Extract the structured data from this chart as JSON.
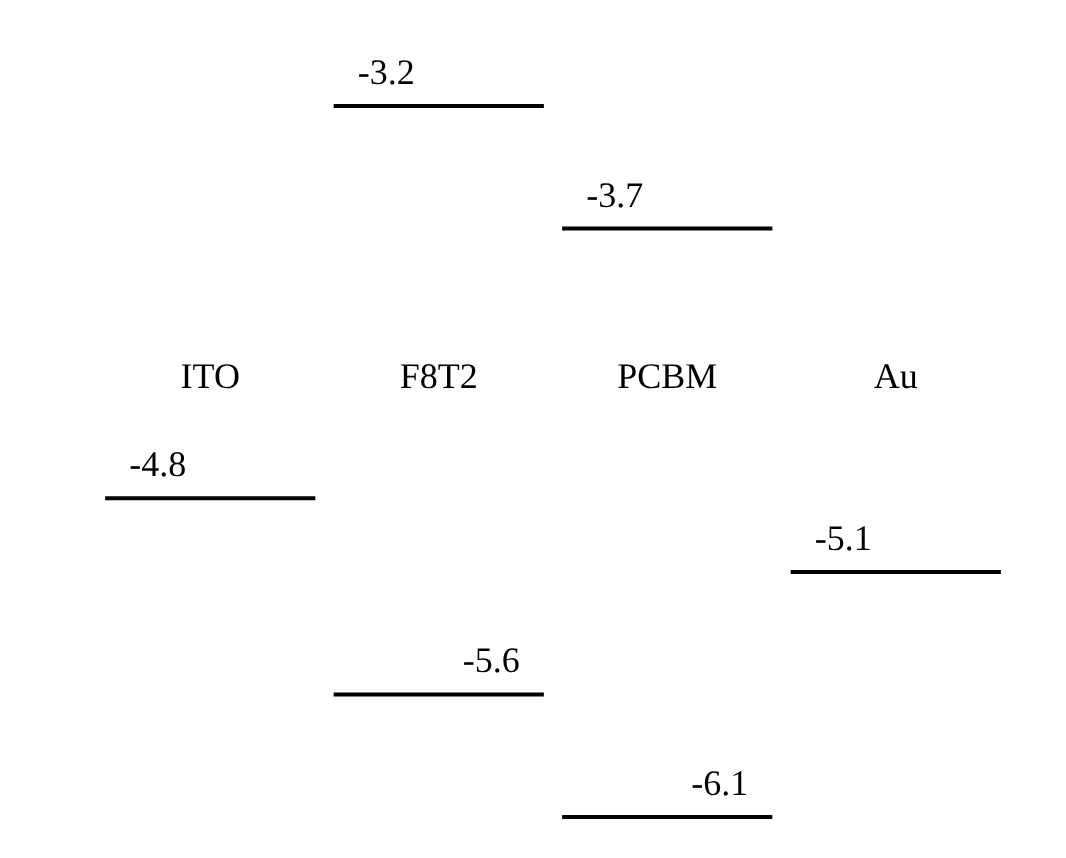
{
  "chart_data": {
    "type": "other",
    "categories": [
      "ITO",
      "F8T2",
      "PCBM",
      "Au"
    ],
    "series": [
      {
        "color": "#000000",
        "values": [
          -4.8,
          -3.2,
          -3.7,
          -5.1
        ]
      },
      {
        "color": "#000000",
        "values": [
          null,
          -5.6,
          -6.1,
          null
        ]
      }
    ],
    "data_labels": true
  }
}
